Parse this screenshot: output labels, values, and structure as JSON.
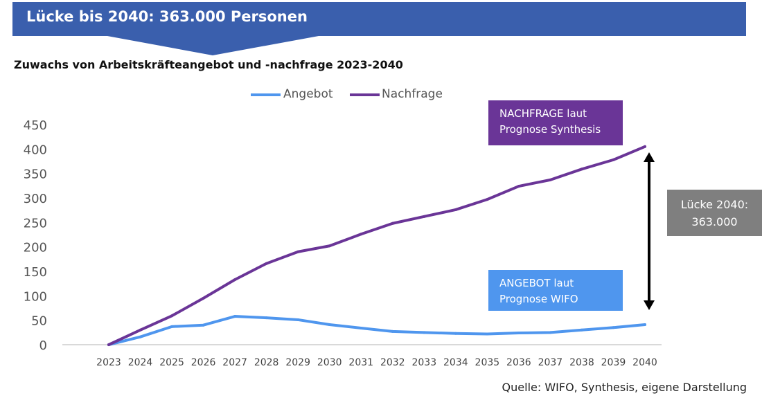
{
  "banner": {
    "title": "Lücke bis 2040: 363.000 Personen",
    "color": "#3a5fad"
  },
  "chart_data": {
    "type": "line",
    "title": "Zuwachs von Arbeitskräfteangebot und -nachfrage 2023-2040",
    "categories": [
      "2023",
      "2024",
      "2025",
      "2026",
      "2027",
      "2028",
      "2029",
      "2030",
      "2031",
      "2032",
      "2033",
      "2034",
      "2035",
      "2036",
      "2037",
      "2038",
      "2039",
      "2040"
    ],
    "series": [
      {
        "name": "Angebot",
        "color": "#4f96ee",
        "values": [
          0,
          16,
          37,
          40,
          58,
          55,
          51,
          41,
          34,
          27,
          25,
          23,
          22,
          24,
          25,
          30,
          35,
          41
        ]
      },
      {
        "name": "Nachfrage",
        "color": "#6a3597",
        "values": [
          0,
          30,
          59,
          95,
          133,
          166,
          190,
          202,
          226,
          248,
          262,
          276,
          297,
          324,
          337,
          359,
          378,
          405
        ]
      }
    ],
    "ylim": [
      0,
      450
    ],
    "yticks": [
      "0",
      "50",
      "100",
      "150",
      "200",
      "250",
      "300",
      "350",
      "400",
      "450"
    ],
    "grid": false,
    "legend": "top-center",
    "annotations": {
      "nachfrage": {
        "line1": "NACHFRAGE laut",
        "line2": "Prognose Synthesis",
        "color": "#6a3597"
      },
      "angebot": {
        "line1": "ANGEBOT laut",
        "line2": "Prognose WIFO",
        "color": "#4f96ee"
      },
      "gap": {
        "line1": "Lücke 2040:",
        "line2": "363.000",
        "color": "#7f7f7f"
      }
    }
  },
  "source": "Quelle: WIFO, Synthesis, eigene Darstellung"
}
